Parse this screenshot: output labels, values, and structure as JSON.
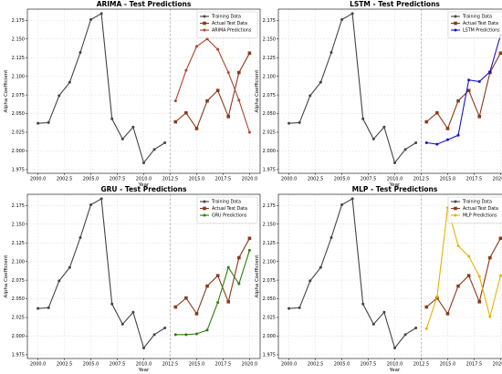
{
  "chart_data": [
    {
      "type": "line",
      "title": "ARIMA - Test Predictions",
      "xlabel": "Year",
      "ylabel": "Alpha Coefficient",
      "xlim": [
        1999.0,
        2021.0
      ],
      "ylim": [
        1.97,
        2.19
      ],
      "xticks": [
        "2000.0",
        "2002.5",
        "2005.0",
        "2007.5",
        "2010.0",
        "2012.5",
        "2015.0",
        "2017.5",
        "2020.0"
      ],
      "yticks": [
        "1.975",
        "2.000",
        "2.025",
        "2.050",
        "2.075",
        "2.100",
        "2.125",
        "2.150",
        "2.175"
      ],
      "split_x": 2012.5,
      "grid": true,
      "legend_position": "top-right",
      "series": [
        {
          "name": "Training Data",
          "color": "#444444",
          "marker": "o",
          "x": [
            2000,
            2001,
            2002,
            2003,
            2004,
            2005,
            2006,
            2007,
            2008,
            2009,
            2010,
            2011,
            2012
          ],
          "y": [
            2.037,
            2.038,
            2.074,
            2.092,
            2.132,
            2.176,
            2.184,
            2.043,
            2.016,
            2.032,
            1.984,
            2.002,
            2.011
          ]
        },
        {
          "name": "Actual Test Data",
          "color": "#8b3a1a",
          "marker": "s",
          "x": [
            2013,
            2014,
            2015,
            2016,
            2017,
            2018,
            2019,
            2020
          ],
          "y": [
            2.039,
            2.051,
            2.03,
            2.067,
            2.081,
            2.046,
            2.105,
            2.131
          ]
        },
        {
          "name": "ARIMA Predictions",
          "color": "#b0452c",
          "marker": "o",
          "x": [
            2013,
            2014,
            2015,
            2016,
            2017,
            2018,
            2019,
            2020
          ],
          "y": [
            2.067,
            2.108,
            2.14,
            2.15,
            2.136,
            2.105,
            2.068,
            2.025
          ]
        }
      ]
    },
    {
      "type": "line",
      "title": "LSTM - Test Predictions",
      "xlabel": "Year",
      "ylabel": "Alpha Coefficient",
      "xlim": [
        1999.0,
        2021.0
      ],
      "ylim": [
        1.97,
        2.19
      ],
      "xticks": [
        "2000.0",
        "2002.5",
        "2005.0",
        "2007.5",
        "2010.0",
        "2012.5",
        "2015.0",
        "2017.5",
        "2020.0"
      ],
      "yticks": [
        "1.975",
        "2.000",
        "2.025",
        "2.050",
        "2.075",
        "2.100",
        "2.125",
        "2.150",
        "2.175"
      ],
      "split_x": 2012.5,
      "grid": true,
      "legend_position": "top-right",
      "series": [
        {
          "name": "Training Data",
          "color": "#444444",
          "marker": "o",
          "x": [
            2000,
            2001,
            2002,
            2003,
            2004,
            2005,
            2006,
            2007,
            2008,
            2009,
            2010,
            2011,
            2012
          ],
          "y": [
            2.037,
            2.038,
            2.074,
            2.092,
            2.132,
            2.176,
            2.184,
            2.043,
            2.016,
            2.032,
            1.984,
            2.002,
            2.011
          ]
        },
        {
          "name": "Actual Test Data",
          "color": "#8b3a1a",
          "marker": "s",
          "x": [
            2013,
            2014,
            2015,
            2016,
            2017,
            2018,
            2019,
            2020
          ],
          "y": [
            2.039,
            2.051,
            2.03,
            2.067,
            2.081,
            2.046,
            2.105,
            2.131
          ]
        },
        {
          "name": "LSTM Predictions",
          "color": "#1a12c8",
          "marker": "o",
          "x": [
            2013,
            2014,
            2015,
            2016,
            2017,
            2018,
            2019,
            2020
          ],
          "y": [
            2.011,
            2.009,
            2.015,
            2.021,
            2.095,
            2.093,
            2.106,
            2.155
          ]
        }
      ]
    },
    {
      "type": "line",
      "title": "GRU - Test Predictions",
      "xlabel": "Year",
      "ylabel": "Alpha Coefficient",
      "xlim": [
        1999.0,
        2021.0
      ],
      "ylim": [
        1.97,
        2.19
      ],
      "xticks": [
        "2000.0",
        "2002.5",
        "2005.0",
        "2007.5",
        "2010.0",
        "2012.5",
        "2015.0",
        "2017.5",
        "2020.0"
      ],
      "yticks": [
        "1.975",
        "2.000",
        "2.025",
        "2.050",
        "2.075",
        "2.100",
        "2.125",
        "2.150",
        "2.175"
      ],
      "split_x": 2012.5,
      "grid": true,
      "legend_position": "top-right",
      "series": [
        {
          "name": "Training Data",
          "color": "#444444",
          "marker": "o",
          "x": [
            2000,
            2001,
            2002,
            2003,
            2004,
            2005,
            2006,
            2007,
            2008,
            2009,
            2010,
            2011,
            2012
          ],
          "y": [
            2.037,
            2.038,
            2.074,
            2.092,
            2.132,
            2.176,
            2.184,
            2.043,
            2.016,
            2.032,
            1.984,
            2.002,
            2.011
          ]
        },
        {
          "name": "Actual Test Data",
          "color": "#8b3a1a",
          "marker": "s",
          "x": [
            2013,
            2014,
            2015,
            2016,
            2017,
            2018,
            2019,
            2020
          ],
          "y": [
            2.039,
            2.051,
            2.03,
            2.067,
            2.081,
            2.046,
            2.105,
            2.131
          ]
        },
        {
          "name": "GRU Predictions",
          "color": "#2e7d10",
          "marker": "o",
          "x": [
            2013,
            2014,
            2015,
            2016,
            2017,
            2018,
            2019,
            2020
          ],
          "y": [
            2.002,
            2.002,
            2.003,
            2.008,
            2.045,
            2.092,
            2.07,
            2.115
          ]
        }
      ]
    },
    {
      "type": "line",
      "title": "MLP - Test Predictions",
      "xlabel": "Year",
      "ylabel": "Alpha Coefficient",
      "xlim": [
        1999.0,
        2021.0
      ],
      "ylim": [
        1.97,
        2.19
      ],
      "xticks": [
        "2000.0",
        "2002.5",
        "2005.0",
        "2007.5",
        "2010.0",
        "2012.5",
        "2015.0",
        "2017.5",
        "2020.0"
      ],
      "yticks": [
        "1.975",
        "2.000",
        "2.025",
        "2.050",
        "2.075",
        "2.100",
        "2.125",
        "2.150",
        "2.175"
      ],
      "split_x": 2012.5,
      "grid": true,
      "legend_position": "top-right",
      "series": [
        {
          "name": "Training Data",
          "color": "#444444",
          "marker": "o",
          "x": [
            2000,
            2001,
            2002,
            2003,
            2004,
            2005,
            2006,
            2007,
            2008,
            2009,
            2010,
            2011,
            2012
          ],
          "y": [
            2.037,
            2.038,
            2.074,
            2.092,
            2.132,
            2.176,
            2.184,
            2.043,
            2.016,
            2.032,
            1.984,
            2.002,
            2.011
          ]
        },
        {
          "name": "Actual Test Data",
          "color": "#8b3a1a",
          "marker": "s",
          "x": [
            2013,
            2014,
            2015,
            2016,
            2017,
            2018,
            2019,
            2020
          ],
          "y": [
            2.039,
            2.051,
            2.03,
            2.067,
            2.081,
            2.046,
            2.105,
            2.131
          ]
        },
        {
          "name": "MLP Predictions",
          "color": "#e6b400",
          "marker": "o",
          "x": [
            2013,
            2014,
            2015,
            2016,
            2017,
            2018,
            2019,
            2020
          ],
          "y": [
            2.01,
            2.053,
            2.172,
            2.121,
            2.107,
            2.08,
            2.026,
            2.081
          ]
        }
      ]
    }
  ]
}
